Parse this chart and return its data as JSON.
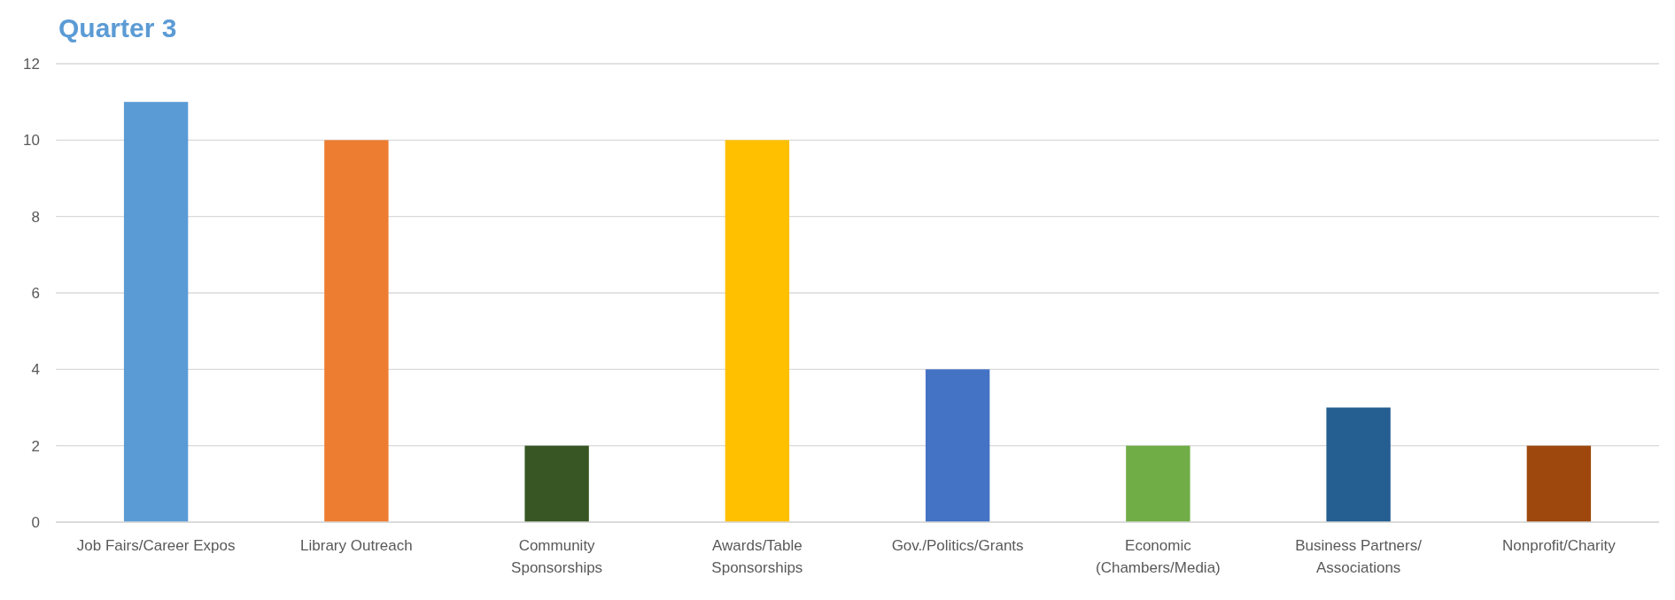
{
  "chart_data": {
    "type": "bar",
    "title": "Quarter 3",
    "categories": [
      "Job Fairs/Career Expos",
      "Library Outreach",
      "Community\nSponsorships",
      "Awards/Table\nSponsorships",
      "Gov./Politics/Grants",
      "Economic\n(Chambers/Media)",
      "Business Partners/\nAssociations",
      "Nonprofit/Charity"
    ],
    "values": [
      11,
      10,
      2,
      10,
      4,
      2,
      3,
      2
    ],
    "colors": [
      "#5b9bd5",
      "#ed7d31",
      "#375623",
      "#ffc000",
      "#4472c4",
      "#70ad47",
      "#255e91",
      "#9e480e"
    ],
    "ylim": [
      0,
      12
    ],
    "yticks": [
      0,
      2,
      4,
      6,
      8,
      10,
      12
    ],
    "grid": "y"
  }
}
